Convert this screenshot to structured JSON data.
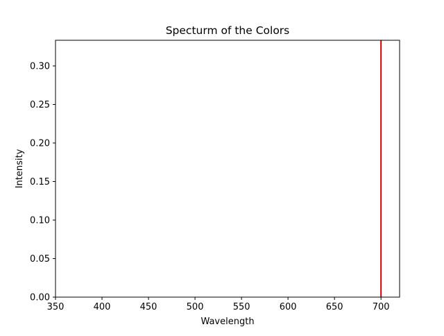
{
  "chart_data": {
    "type": "line",
    "title": "Specturm of the Colors",
    "xlabel": "Wavelength",
    "ylabel": "Intensity",
    "xlim": [
      350,
      720
    ],
    "ylim": [
      0,
      0.3333
    ],
    "x_ticks": [
      350,
      400,
      450,
      500,
      550,
      600,
      650,
      700
    ],
    "x_tick_labels": [
      "350",
      "400",
      "450",
      "500",
      "550",
      "600",
      "650",
      "700"
    ],
    "y_ticks": [
      0.0,
      0.05,
      0.1,
      0.15,
      0.2,
      0.25,
      0.3
    ],
    "y_tick_labels": [
      "0.00",
      "0.05",
      "0.10",
      "0.15",
      "0.20",
      "0.25",
      "0.30"
    ],
    "grid": false,
    "series": [
      {
        "color": "#cc0000",
        "x": [
          700,
          700
        ],
        "y": [
          0,
          0.3333
        ]
      }
    ]
  }
}
